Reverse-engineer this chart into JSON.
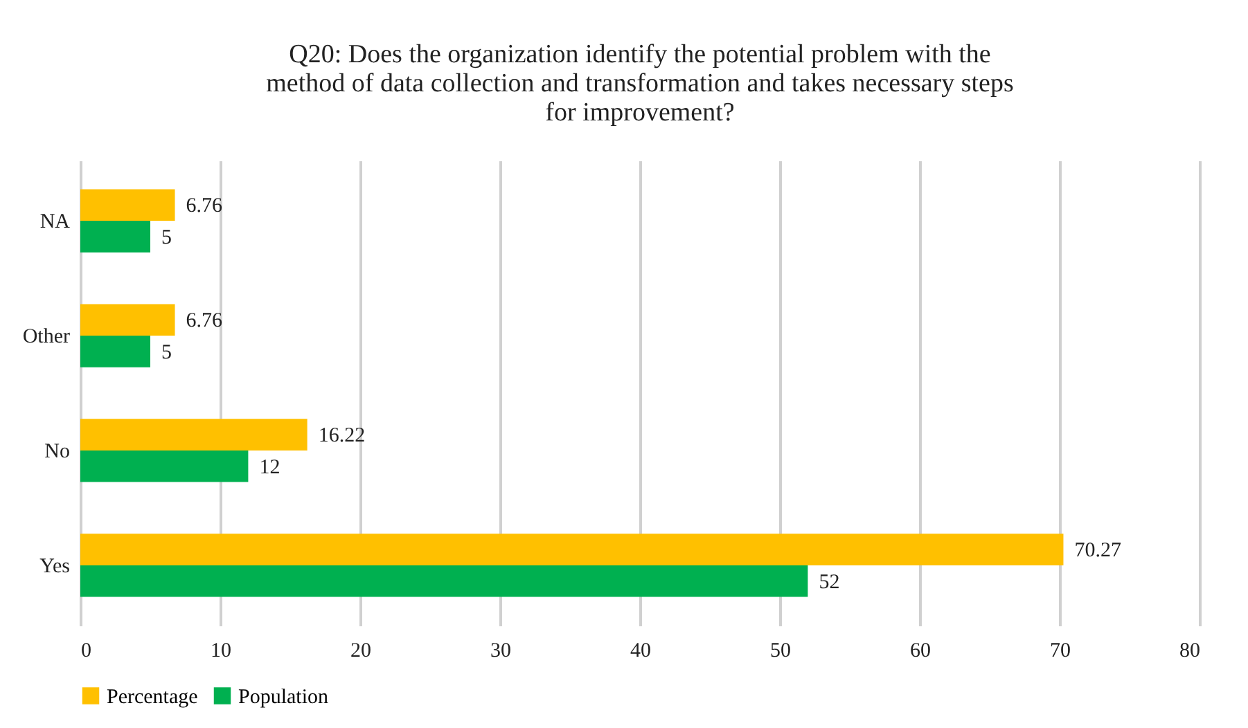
{
  "chart_data": {
    "type": "bar",
    "orientation": "horizontal",
    "title": "Q20: Does the organization identify the potential problem with the method of data collection and transformation and takes necessary steps for improvement?",
    "categories": [
      "NA",
      "Other",
      "No",
      "Yes"
    ],
    "series": [
      {
        "name": "Percentage",
        "color": "#ffc000",
        "values": [
          6.76,
          6.76,
          16.22,
          70.27
        ]
      },
      {
        "name": "Population",
        "color": "#00b050",
        "values": [
          5,
          5,
          12,
          52
        ]
      }
    ],
    "xlim": [
      0,
      80
    ],
    "xticks": [
      0,
      10,
      20,
      30,
      40,
      50,
      60,
      70,
      80
    ],
    "grid": "x",
    "legend": "bottom",
    "data_labels": true
  }
}
